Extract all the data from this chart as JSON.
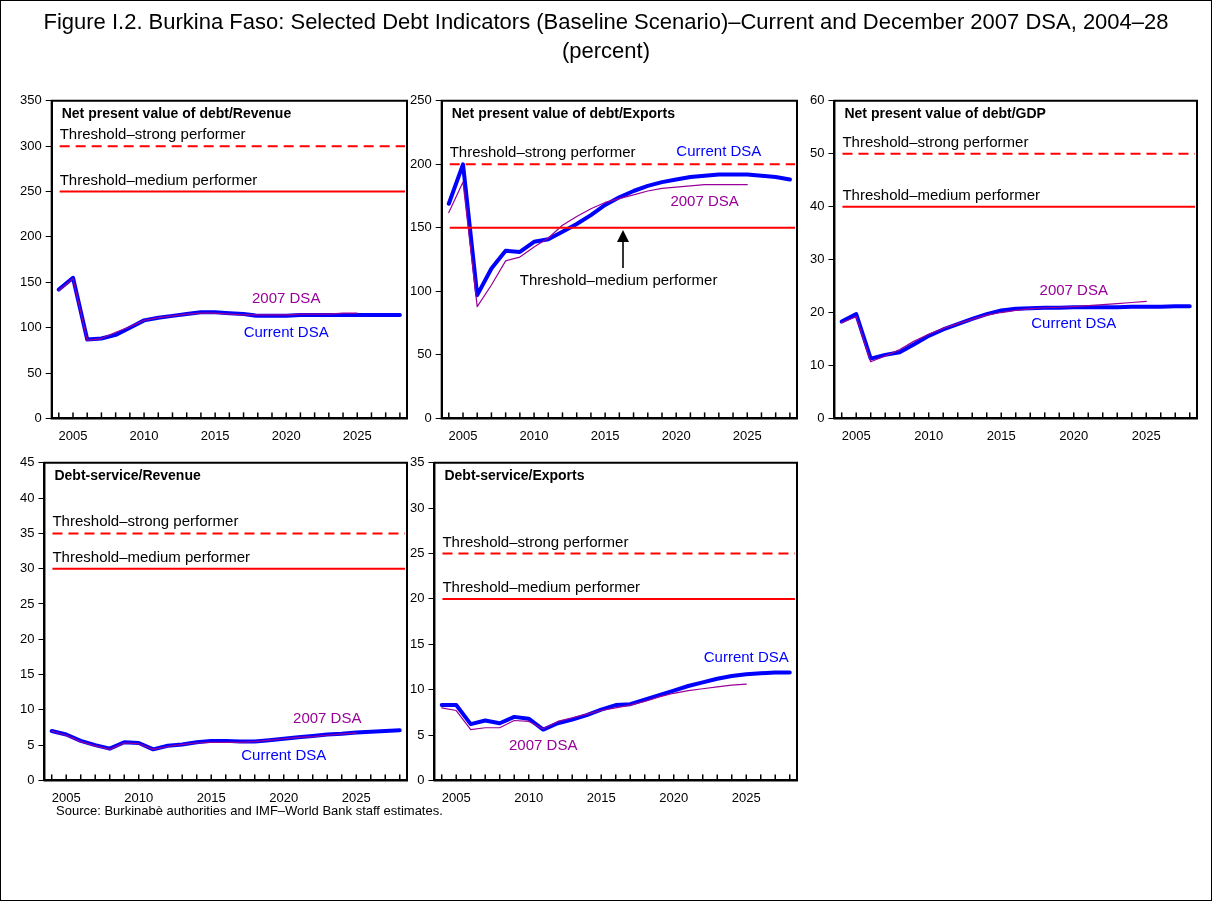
{
  "chart_data": [
    {
      "type": "line",
      "title": "Net present value of debt/Revenue",
      "annotations": [
        "Figure I.2. Burkina Faso: Selected Debt Indicators (Baseline Scenario)–Current and December 2007 DSA, 2004–28 (percent)"
      ],
      "categories": [
        null,
        "2005",
        null,
        null,
        null,
        null,
        "2010",
        null,
        null,
        null,
        null,
        "2015",
        null,
        null,
        null,
        null,
        "2020",
        null,
        null,
        null,
        null,
        "2025",
        null,
        null,
        null
      ],
      "ylim": [
        0,
        350
      ],
      "yticks": [
        0,
        50,
        100,
        150,
        200,
        250,
        300,
        350
      ],
      "grid": false,
      "legend": false,
      "ref_lines": [
        {
          "axis": "y",
          "value": 300,
          "label": "Threshold–strong performer",
          "color": "#ff0000",
          "line_style": "dashed"
        },
        {
          "axis": "y",
          "value": 250,
          "label": "Threshold–medium performer",
          "color": "#ff0000",
          "line_style": "solid"
        }
      ],
      "series": [
        {
          "name": "Current DSA",
          "color": "#0000ff",
          "values": [
            142,
            155,
            87,
            88,
            92,
            100,
            108,
            111,
            113,
            115,
            117,
            117,
            116,
            115,
            113,
            113,
            113,
            114,
            114,
            114,
            114,
            114,
            114,
            114,
            114
          ]
        },
        {
          "name": "2007 DSA",
          "color": "#990099",
          "values": [
            141,
            154,
            86,
            88,
            95,
            101,
            108,
            111,
            113,
            115,
            116,
            116,
            115,
            114,
            114,
            114,
            114,
            115,
            115,
            115,
            116,
            116,
            null,
            null,
            null
          ]
        }
      ]
    },
    {
      "type": "line",
      "title": "Net present value of debt/Exports",
      "categories": [
        null,
        "2005",
        null,
        null,
        null,
        null,
        "2010",
        null,
        null,
        null,
        null,
        "2015",
        null,
        null,
        null,
        null,
        "2020",
        null,
        null,
        null,
        null,
        "2025",
        null,
        null,
        null
      ],
      "ylim": [
        0,
        250
      ],
      "yticks": [
        0,
        50,
        100,
        150,
        200,
        250
      ],
      "grid": false,
      "legend": false,
      "ref_lines": [
        {
          "axis": "y",
          "value": 200,
          "label": "Threshold–strong performer",
          "color": "#ff0000",
          "line_style": "dashed"
        },
        {
          "axis": "y",
          "value": 150,
          "label": "Threshold–medium performer",
          "color": "#ff0000",
          "line_style": "solid"
        }
      ],
      "series": [
        {
          "name": "Current DSA",
          "color": "#0000ff",
          "values": [
            169,
            200,
            97,
            118,
            132,
            131,
            139,
            141,
            147,
            153,
            160,
            168,
            174,
            179,
            183,
            186,
            188,
            190,
            191,
            192,
            192,
            192,
            191,
            190,
            188
          ]
        },
        {
          "name": "2007 DSA",
          "color": "#990099",
          "values": [
            162,
            186,
            88,
            105,
            124,
            127,
            135,
            142,
            152,
            159,
            165,
            170,
            173,
            176,
            179,
            181,
            182,
            183,
            184,
            184,
            184,
            184,
            null,
            null,
            null
          ]
        }
      ]
    },
    {
      "type": "line",
      "title": "Net present value of debt/GDP",
      "categories": [
        null,
        "2005",
        null,
        null,
        null,
        null,
        "2010",
        null,
        null,
        null,
        null,
        "2015",
        null,
        null,
        null,
        null,
        "2020",
        null,
        null,
        null,
        null,
        "2025",
        null,
        null,
        null
      ],
      "ylim": [
        0,
        60
      ],
      "yticks": [
        0,
        10,
        20,
        30,
        40,
        50,
        60
      ],
      "grid": false,
      "legend": false,
      "ref_lines": [
        {
          "axis": "y",
          "value": 50,
          "label": "Threshold–strong performer",
          "color": "#ff0000",
          "line_style": "dashed"
        },
        {
          "axis": "y",
          "value": 40,
          "label": "Threshold–medium performer",
          "color": "#ff0000",
          "line_style": "solid"
        }
      ],
      "series": [
        {
          "name": "Current DSA",
          "color": "#0000ff",
          "values": [
            18.3,
            19.7,
            11.3,
            12.0,
            12.5,
            14.0,
            15.6,
            16.8,
            17.8,
            18.8,
            19.7,
            20.4,
            20.7,
            20.8,
            20.9,
            20.9,
            21.0,
            21.0,
            21.0,
            21.0,
            21.1,
            21.1,
            21.1,
            21.2,
            21.2
          ]
        },
        {
          "name": "2007 DSA",
          "color": "#990099",
          "values": [
            18.1,
            19.2,
            10.7,
            11.8,
            13.0,
            14.6,
            15.9,
            17.0,
            17.9,
            18.7,
            19.5,
            20.0,
            20.4,
            20.7,
            20.9,
            21.0,
            21.1,
            21.3,
            21.5,
            21.7,
            21.9,
            22.1,
            null,
            null,
            null
          ]
        }
      ]
    },
    {
      "type": "line",
      "title": "Debt-service/Revenue",
      "annotations": [
        "Source: Burkinabè authorities and IMF–World Bank staff estimates."
      ],
      "categories": [
        null,
        "2005",
        null,
        null,
        null,
        null,
        "2010",
        null,
        null,
        null,
        null,
        "2015",
        null,
        null,
        null,
        null,
        "2020",
        null,
        null,
        null,
        null,
        "2025",
        null,
        null,
        null
      ],
      "ylim": [
        0,
        45
      ],
      "yticks": [
        0,
        5,
        10,
        15,
        20,
        25,
        30,
        35,
        40,
        45
      ],
      "grid": false,
      "legend": false,
      "ref_lines": [
        {
          "axis": "y",
          "value": 35,
          "label": "Threshold–strong performer",
          "color": "#ff0000",
          "line_style": "dashed"
        },
        {
          "axis": "y",
          "value": 30,
          "label": "Threshold–medium performer",
          "color": "#ff0000",
          "line_style": "solid"
        }
      ],
      "series": [
        {
          "name": "Current DSA",
          "color": "#0000ff",
          "values": [
            7.0,
            6.5,
            5.6,
            5.0,
            4.5,
            5.4,
            5.3,
            4.4,
            4.9,
            5.1,
            5.4,
            5.6,
            5.6,
            5.5,
            5.5,
            5.7,
            5.9,
            6.1,
            6.3,
            6.5,
            6.6,
            6.8,
            6.9,
            7.0,
            7.1
          ]
        },
        {
          "name": "2007 DSA",
          "color": "#990099",
          "values": [
            7.0,
            6.4,
            5.5,
            4.9,
            4.4,
            5.3,
            5.2,
            4.4,
            4.8,
            5.1,
            5.3,
            5.4,
            5.4,
            5.4,
            5.5,
            5.7,
            5.9,
            6.1,
            6.2,
            6.4,
            6.6,
            6.7,
            null,
            null,
            null
          ]
        }
      ]
    },
    {
      "type": "line",
      "title": "Debt-service/Exports",
      "categories": [
        null,
        "2005",
        null,
        null,
        null,
        null,
        "2010",
        null,
        null,
        null,
        null,
        "2015",
        null,
        null,
        null,
        null,
        "2020",
        null,
        null,
        null,
        null,
        "2025",
        null,
        null,
        null
      ],
      "ylim": [
        0,
        35
      ],
      "yticks": [
        0,
        5,
        10,
        15,
        20,
        25,
        30,
        35
      ],
      "grid": false,
      "legend": false,
      "ref_lines": [
        {
          "axis": "y",
          "value": 25,
          "label": "Threshold–strong performer",
          "color": "#ff0000",
          "line_style": "dashed"
        },
        {
          "axis": "y",
          "value": 20,
          "label": "Threshold–medium performer",
          "color": "#ff0000",
          "line_style": "solid"
        }
      ],
      "series": [
        {
          "name": "Current DSA",
          "color": "#0000ff",
          "values": [
            8.3,
            8.3,
            6.2,
            6.6,
            6.3,
            7.0,
            6.8,
            5.6,
            6.3,
            6.7,
            7.2,
            7.8,
            8.3,
            8.4,
            8.9,
            9.4,
            9.9,
            10.4,
            10.8,
            11.2,
            11.5,
            11.7,
            11.8,
            11.9,
            11.9
          ]
        },
        {
          "name": "2007 DSA",
          "color": "#990099",
          "values": [
            8.0,
            7.7,
            5.6,
            5.8,
            5.8,
            6.6,
            6.5,
            5.7,
            6.5,
            6.9,
            7.3,
            7.7,
            8.0,
            8.3,
            8.7,
            9.2,
            9.6,
            9.9,
            10.1,
            10.3,
            10.5,
            10.6,
            null,
            null,
            null
          ]
        }
      ]
    }
  ]
}
